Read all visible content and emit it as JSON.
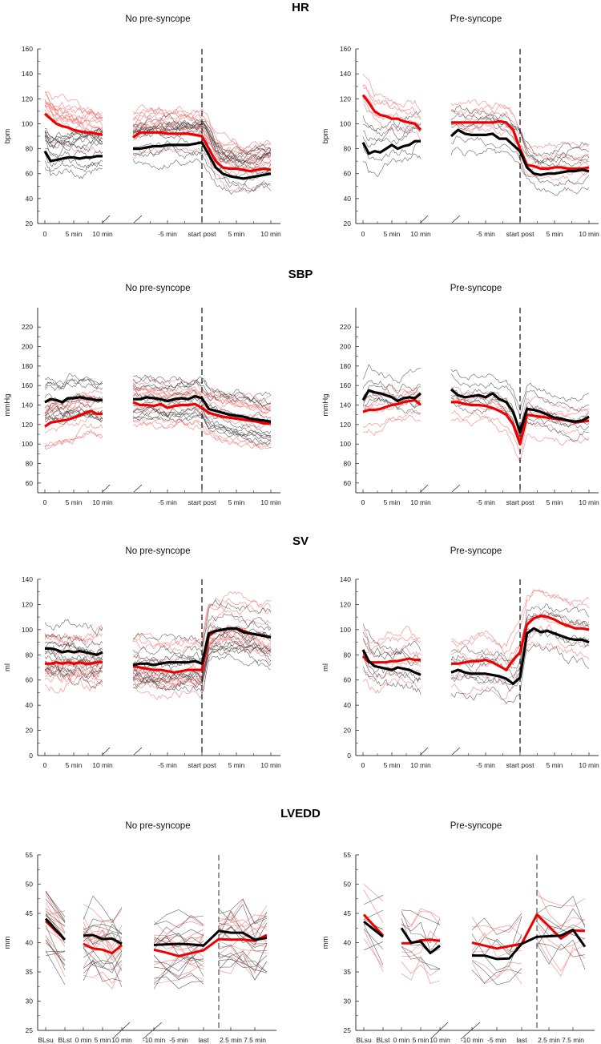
{
  "figure": {
    "rows": [
      {
        "title": "HR"
      },
      {
        "title": "SBP"
      },
      {
        "title": "SV"
      },
      {
        "title": "LVEDD"
      }
    ],
    "colors": {
      "red": "#ee0000",
      "black": "#000000",
      "red_individual": "#f07070",
      "black_individual": "#4a4a4a"
    }
  },
  "chart_data": [
    {
      "type": "line",
      "row": 0,
      "panel": "No pre-syncope",
      "ylabel": "bpm",
      "ylim": [
        20,
        160
      ],
      "yticks": [
        20,
        40,
        60,
        80,
        100,
        120,
        140,
        160
      ],
      "xticks": [
        {
          "label": "0",
          "seg": "seg1",
          "t": 0
        },
        {
          "label": "5 min",
          "seg": "seg1",
          "t": 5
        },
        {
          "label": "10 min",
          "seg": "seg1",
          "t": 10
        },
        {
          "label": "-5 min",
          "seg": "seg2",
          "t": -5
        },
        {
          "label": "start post",
          "seg": "seg2",
          "t": 0
        },
        {
          "label": "5 min",
          "seg": "seg2",
          "t": 5
        },
        {
          "label": "10 min",
          "seg": "seg2",
          "t": 10
        }
      ],
      "series": {
        "red": {
          "seg1": [
            108,
            104,
            100,
            98,
            97,
            95,
            94,
            93,
            93,
            92,
            91
          ],
          "seg2": [
            89,
            93,
            93,
            93,
            93,
            92,
            92,
            92,
            92,
            91,
            90,
            80,
            70,
            65,
            64,
            64,
            63,
            62,
            63,
            64,
            63
          ]
        },
        "black": {
          "seg1": [
            78,
            70,
            71,
            72,
            73,
            73,
            72,
            73,
            73,
            74,
            74
          ],
          "seg2": [
            80,
            80,
            81,
            82,
            82,
            83,
            83,
            83,
            83,
            84,
            85,
            75,
            65,
            60,
            58,
            57,
            56,
            57,
            58,
            59,
            60
          ]
        }
      }
    },
    {
      "type": "line",
      "row": 0,
      "panel": "Pre-syncope",
      "ylabel": "bpm",
      "ylim": [
        20,
        160
      ],
      "yticks": [
        20,
        40,
        60,
        80,
        100,
        120,
        140,
        160
      ],
      "xticks": [
        {
          "label": "0",
          "seg": "seg1",
          "t": 0
        },
        {
          "label": "5 min",
          "seg": "seg1",
          "t": 5
        },
        {
          "label": "10 min",
          "seg": "seg1",
          "t": 10
        },
        {
          "label": "-5 min",
          "seg": "seg2",
          "t": -5
        },
        {
          "label": "start post",
          "seg": "seg2",
          "t": 0
        },
        {
          "label": "5 min",
          "seg": "seg2",
          "t": 5
        },
        {
          "label": "10 min",
          "seg": "seg2",
          "t": 10
        }
      ],
      "series": {
        "red": {
          "seg1": [
            123,
            117,
            110,
            107,
            106,
            104,
            104,
            102,
            101,
            100,
            95
          ],
          "seg2": [
            101,
            101,
            101,
            101,
            101,
            101,
            101,
            102,
            101,
            95,
            80,
            67,
            66,
            64,
            64,
            65,
            65,
            64,
            64,
            64,
            65
          ]
        },
        "black": {
          "seg1": [
            85,
            76,
            78,
            77,
            80,
            83,
            80,
            82,
            83,
            86,
            86
          ],
          "seg2": [
            90,
            95,
            92,
            91,
            91,
            91,
            92,
            88,
            88,
            83,
            78,
            65,
            60,
            59,
            60,
            60,
            61,
            62,
            62,
            63,
            62
          ]
        }
      }
    },
    {
      "type": "line",
      "row": 1,
      "panel": "No pre-syncope",
      "ylabel": "mmHg",
      "ylim": [
        50,
        230
      ],
      "yticks": [
        60,
        80,
        100,
        120,
        140,
        160,
        180,
        200,
        220
      ],
      "xticks": [
        {
          "label": "0",
          "seg": "seg1",
          "t": 0
        },
        {
          "label": "5 min",
          "seg": "seg1",
          "t": 5
        },
        {
          "label": "10 min",
          "seg": "seg1",
          "t": 10
        },
        {
          "label": "-5 min",
          "seg": "seg2",
          "t": -5
        },
        {
          "label": "start post",
          "seg": "seg2",
          "t": 0
        },
        {
          "label": "5 min",
          "seg": "seg2",
          "t": 5
        },
        {
          "label": "10 min",
          "seg": "seg2",
          "t": 10
        }
      ],
      "series": {
        "red": {
          "seg1": [
            118,
            122,
            123,
            124,
            125,
            127,
            129,
            132,
            134,
            131,
            131
          ],
          "seg2": [
            143,
            140,
            140,
            139,
            141,
            137,
            139,
            140,
            140,
            141,
            137,
            132,
            130,
            128,
            127,
            126,
            125,
            124,
            123,
            121,
            121
          ]
        },
        "black": {
          "seg1": [
            143,
            146,
            145,
            143,
            147,
            147,
            148,
            147,
            146,
            145,
            145
          ],
          "seg2": [
            146,
            146,
            148,
            147,
            146,
            144,
            146,
            147,
            146,
            149,
            147,
            136,
            134,
            132,
            130,
            129,
            128,
            126,
            125,
            124,
            123
          ]
        }
      }
    },
    {
      "type": "line",
      "row": 1,
      "panel": "Pre-syncope",
      "ylabel": "mmHg",
      "ylim": [
        50,
        230
      ],
      "yticks": [
        60,
        80,
        100,
        120,
        140,
        160,
        180,
        200,
        220
      ],
      "xticks": [
        {
          "label": "0",
          "seg": "seg1",
          "t": 0
        },
        {
          "label": "5 min",
          "seg": "seg1",
          "t": 5
        },
        {
          "label": "10 min",
          "seg": "seg1",
          "t": 10
        },
        {
          "label": "-5 min",
          "seg": "seg2",
          "t": -5
        },
        {
          "label": "start post",
          "seg": "seg2",
          "t": 0
        },
        {
          "label": "5 min",
          "seg": "seg2",
          "t": 5
        },
        {
          "label": "10 min",
          "seg": "seg2",
          "t": 10
        }
      ],
      "series": {
        "red": {
          "seg1": [
            133,
            135,
            135,
            136,
            138,
            140,
            141,
            143,
            144,
            145,
            140
          ],
          "seg2": [
            143,
            143,
            141,
            140,
            140,
            139,
            137,
            134,
            130,
            120,
            100,
            130,
            129,
            128,
            127,
            126,
            125,
            124,
            122,
            123,
            124
          ]
        },
        "black": {
          "seg1": [
            145,
            155,
            153,
            152,
            150,
            148,
            144,
            147,
            148,
            147,
            152
          ],
          "seg2": [
            156,
            150,
            148,
            149,
            150,
            148,
            152,
            146,
            143,
            133,
            112,
            136,
            135,
            133,
            130,
            127,
            126,
            124,
            123,
            124,
            128
          ]
        }
      }
    },
    {
      "type": "line",
      "row": 2,
      "panel": "No pre-syncope",
      "ylabel": "ml",
      "ylim": [
        0,
        140
      ],
      "yticks": [
        0,
        20,
        40,
        60,
        80,
        100,
        120,
        140
      ],
      "xticks": [
        {
          "label": "0",
          "seg": "seg1",
          "t": 0
        },
        {
          "label": "5 min",
          "seg": "seg1",
          "t": 5
        },
        {
          "label": "10 min",
          "seg": "seg1",
          "t": 10
        },
        {
          "label": "-5 min",
          "seg": "seg2",
          "t": -5
        },
        {
          "label": "start post",
          "seg": "seg2",
          "t": 0
        },
        {
          "label": "5 min",
          "seg": "seg2",
          "t": 5
        },
        {
          "label": "10 min",
          "seg": "seg2",
          "t": 10
        }
      ],
      "series": {
        "red": {
          "seg1": [
            73,
            73,
            74,
            73,
            74,
            73,
            74,
            73,
            73,
            74,
            74
          ],
          "seg2": [
            71,
            70,
            69,
            68,
            68,
            67,
            66,
            67,
            68,
            68,
            68,
            95,
            99,
            100,
            101,
            101,
            99,
            97,
            96,
            95,
            94
          ]
        },
        "black": {
          "seg1": [
            85,
            85,
            84,
            82,
            83,
            82,
            83,
            82,
            81,
            80,
            82
          ],
          "seg2": [
            72,
            73,
            73,
            72,
            73,
            74,
            74,
            74,
            74,
            75,
            73,
            97,
            99,
            100,
            101,
            101,
            98,
            97,
            96,
            95,
            94
          ]
        }
      }
    },
    {
      "type": "line",
      "row": 2,
      "panel": "Pre-syncope",
      "ylabel": "ml",
      "ylim": [
        0,
        140
      ],
      "yticks": [
        0,
        20,
        40,
        60,
        80,
        100,
        120,
        140
      ],
      "xticks": [
        {
          "label": "0",
          "seg": "seg1",
          "t": 0
        },
        {
          "label": "5 min",
          "seg": "seg1",
          "t": 5
        },
        {
          "label": "10 min",
          "seg": "seg1",
          "t": 10
        },
        {
          "label": "-5 min",
          "seg": "seg2",
          "t": -5
        },
        {
          "label": "start post",
          "seg": "seg2",
          "t": 0
        },
        {
          "label": "5 min",
          "seg": "seg2",
          "t": 5
        },
        {
          "label": "10 min",
          "seg": "seg2",
          "t": 10
        }
      ],
      "series": {
        "red": {
          "seg1": [
            79,
            74,
            74,
            74,
            74,
            75,
            75,
            76,
            77,
            76,
            76
          ],
          "seg2": [
            73,
            73,
            74,
            75,
            75,
            76,
            74,
            71,
            68,
            76,
            82,
            104,
            109,
            111,
            110,
            108,
            105,
            103,
            101,
            101,
            100
          ]
        },
        "black": {
          "seg1": [
            84,
            75,
            71,
            70,
            69,
            68,
            70,
            69,
            68,
            66,
            64
          ],
          "seg2": [
            66,
            68,
            66,
            65,
            65,
            65,
            64,
            63,
            61,
            57,
            62,
            97,
            101,
            98,
            99,
            97,
            95,
            93,
            92,
            92,
            90
          ]
        }
      }
    },
    {
      "type": "line",
      "row": 3,
      "panel": "No pre-syncope",
      "ylabel": "mm",
      "ylim": [
        25,
        55
      ],
      "yticks": [
        25,
        30,
        35,
        40,
        45,
        50,
        55
      ],
      "xticks": [
        {
          "label": "BLsu",
          "seg": "bl",
          "t": 0
        },
        {
          "label": "BLst",
          "seg": "bl",
          "t": 1
        },
        {
          "label": "0 min",
          "seg": "seg1",
          "t": 0
        },
        {
          "label": "5 min",
          "seg": "seg1",
          "t": 5
        },
        {
          "label": "10 min",
          "seg": "seg1",
          "t": 10
        },
        {
          "label": "-10 min",
          "seg": "pre",
          "t": -10
        },
        {
          "label": "-5 min",
          "seg": "pre",
          "t": -5
        },
        {
          "label": "last",
          "seg": "pre",
          "t": 0
        },
        {
          "label": "2.5 min",
          "seg": "post",
          "t": 2.5
        },
        {
          "label": "7.5 min",
          "seg": "post",
          "t": 7.5
        }
      ],
      "x_points": {
        "bl": [
          0,
          1
        ],
        "seg1": [
          0,
          2.5,
          5,
          7.5,
          10
        ],
        "pre": [
          -10,
          -7.5,
          -5,
          -2.5,
          0
        ],
        "post": [
          0,
          2.5,
          5,
          7.5,
          10
        ]
      },
      "series": {
        "red": {
          "bl": [
            43.7,
            40.5
          ],
          "seg1": [
            39.8,
            39,
            38.8,
            38.2,
            39.6
          ],
          "pre": [
            38.8,
            38.3,
            37.7,
            38.2,
            38.7
          ],
          "post": [
            40.6,
            40.5,
            40.5,
            40.3,
            41.3
          ]
        },
        "black": {
          "bl": [
            44.1,
            40.5
          ],
          "seg1": [
            41.2,
            41.3,
            40.6,
            40.7,
            39.8
          ],
          "pre": [
            39.6,
            39.7,
            39.8,
            39.7,
            39.5
          ],
          "post": [
            42,
            41.7,
            41.7,
            40.5,
            40.8
          ]
        }
      }
    },
    {
      "type": "line",
      "row": 3,
      "panel": "Pre-syncope",
      "ylabel": "mm",
      "ylim": [
        25,
        55
      ],
      "yticks": [
        25,
        30,
        35,
        40,
        45,
        50,
        55
      ],
      "xticks": [
        {
          "label": "BLsu",
          "seg": "bl",
          "t": 0
        },
        {
          "label": "BLst",
          "seg": "bl",
          "t": 1
        },
        {
          "label": "0 min",
          "seg": "seg1",
          "t": 0
        },
        {
          "label": "5 min",
          "seg": "seg1",
          "t": 5
        },
        {
          "label": "10 min",
          "seg": "seg1",
          "t": 10
        },
        {
          "label": "-10 min",
          "seg": "pre",
          "t": -10
        },
        {
          "label": "-5 min",
          "seg": "pre",
          "t": -5
        },
        {
          "label": "last",
          "seg": "pre",
          "t": 0
        },
        {
          "label": "2.5 min",
          "seg": "post",
          "t": 2.5
        },
        {
          "label": "7.5 min",
          "seg": "post",
          "t": 7.5
        }
      ],
      "x_points": {
        "bl": [
          0,
          1
        ],
        "seg1": [
          0,
          2.5,
          5,
          7.5,
          10
        ],
        "pre": [
          -10,
          -7.5,
          -5,
          -2.5,
          0
        ],
        "post": [
          0,
          2.5,
          5,
          7.5,
          10
        ]
      },
      "series": {
        "red": {
          "bl": [
            44.8,
            41.2
          ],
          "seg1": [
            39.9,
            39.9,
            40.4,
            40.5,
            40.3
          ],
          "pre": [
            40,
            39.5,
            39,
            39.4,
            39.8
          ],
          "post": [
            44.8,
            42.8,
            40.7,
            42.1,
            42
          ]
        },
        "black": {
          "bl": [
            43.6,
            41
          ],
          "seg1": [
            42.5,
            40,
            40.2,
            38.2,
            39.5
          ],
          "pre": [
            37.8,
            37.8,
            37.2,
            37.3,
            39.8
          ],
          "post": [
            41,
            41.1,
            41.2,
            42.2,
            39.3
          ]
        }
      }
    }
  ]
}
